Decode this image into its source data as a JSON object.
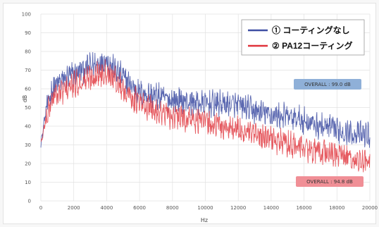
{
  "chart_data": {
    "type": "line",
    "title": "",
    "xlabel": "Hz",
    "ylabel": "dB",
    "xlim": [
      0,
      20000
    ],
    "ylim": [
      0,
      100
    ],
    "xticks": [
      "0",
      "2000",
      "4000",
      "6000",
      "8000",
      "10000",
      "12000",
      "14000",
      "16000",
      "18000",
      "20000"
    ],
    "yticks": [
      "0",
      "10",
      "20",
      "30",
      "40",
      "50",
      "60",
      "70",
      "80",
      "90",
      "100"
    ],
    "grid": true,
    "legend_position": "top-right",
    "series": [
      {
        "name": "① コーティングなし",
        "color": "#3f4fa3",
        "envelope_x": [
          0,
          300,
          700,
          1200,
          2000,
          3000,
          3500,
          4000,
          4200,
          5000,
          6000,
          7000,
          8000,
          9000,
          10000,
          11000,
          12000,
          13000,
          14000,
          15000,
          16000,
          17000,
          18000,
          19000,
          20000
        ],
        "envelope_y": [
          30,
          48,
          60,
          64,
          68,
          72,
          74,
          76,
          73,
          66,
          58,
          56,
          54,
          53,
          52,
          52,
          51,
          48,
          46,
          45,
          43,
          40,
          38,
          36,
          35
        ]
      },
      {
        "name": "② PA12コーティング",
        "color": "#e0333b",
        "envelope_x": [
          0,
          300,
          700,
          1200,
          2000,
          3000,
          3500,
          4000,
          4200,
          5000,
          6000,
          7000,
          8000,
          9000,
          10000,
          11000,
          12000,
          13000,
          14000,
          15000,
          16000,
          17000,
          18000,
          19000,
          20000
        ],
        "envelope_y": [
          30,
          44,
          55,
          58,
          62,
          66,
          68,
          70,
          68,
          60,
          52,
          48,
          45,
          44,
          42,
          40,
          38,
          35,
          33,
          31,
          28,
          26,
          25,
          22,
          20
        ]
      }
    ],
    "annotations": [
      {
        "text": "OVERALL : 99.0 dB",
        "color": "#8fb0d8"
      },
      {
        "text": "OVERALL : 94.8 dB",
        "color": "#f08f96"
      }
    ]
  }
}
